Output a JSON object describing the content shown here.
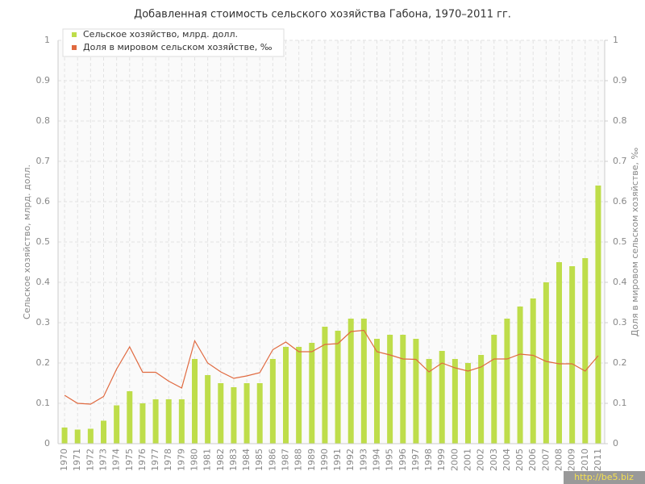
{
  "chart_data": {
    "type": "bar",
    "title": "Добавленная стоимость сельского хозяйства Габона, 1970–2011 гг.",
    "y_label": "Сельское хозяйство, млрд. долл.",
    "y2_label": "Доля в мировом сельском хозяйстве, ‰",
    "watermark": "http://be5.biz",
    "categories": [
      "1970",
      "1971",
      "1972",
      "1973",
      "1974",
      "1975",
      "1976",
      "1977",
      "1978",
      "1979",
      "1980",
      "1981",
      "1982",
      "1983",
      "1984",
      "1985",
      "1986",
      "1987",
      "1988",
      "1989",
      "1990",
      "1991",
      "1992",
      "1993",
      "1994",
      "1995",
      "1996",
      "1997",
      "1998",
      "1999",
      "2000",
      "2001",
      "2002",
      "2003",
      "2004",
      "2005",
      "2006",
      "2007",
      "2008",
      "2009",
      "2010",
      "2011"
    ],
    "series": [
      {
        "name": "Сельское хозяйство, млрд. долл.",
        "type": "bar",
        "color": "#bedd4a",
        "values": [
          0.04,
          0.035,
          0.037,
          0.057,
          0.095,
          0.13,
          0.1,
          0.11,
          0.11,
          0.11,
          0.21,
          0.17,
          0.15,
          0.14,
          0.15,
          0.15,
          0.21,
          0.24,
          0.24,
          0.25,
          0.29,
          0.28,
          0.31,
          0.31,
          0.26,
          0.27,
          0.27,
          0.26,
          0.21,
          0.23,
          0.21,
          0.2,
          0.22,
          0.27,
          0.31,
          0.34,
          0.36,
          0.4,
          0.45,
          0.44,
          0.46,
          0.64
        ]
      },
      {
        "name": "Доля в мировом сельском хозяйстве, ‰",
        "type": "line",
        "axis": "y2",
        "color": "#e0693f",
        "values": [
          0.12,
          0.1,
          0.098,
          0.117,
          0.185,
          0.24,
          0.177,
          0.177,
          0.155,
          0.138,
          0.255,
          0.2,
          0.178,
          0.162,
          0.168,
          0.176,
          0.233,
          0.252,
          0.228,
          0.228,
          0.246,
          0.248,
          0.278,
          0.281,
          0.228,
          0.22,
          0.21,
          0.209,
          0.178,
          0.2,
          0.188,
          0.18,
          0.19,
          0.21,
          0.21,
          0.222,
          0.219,
          0.204,
          0.198,
          0.198,
          0.18,
          0.218
        ]
      }
    ],
    "ylim": [
      0,
      1
    ],
    "yticks": [
      0,
      0.1,
      0.2,
      0.3,
      0.4,
      0.5,
      0.6,
      0.7,
      0.8,
      0.9,
      1
    ],
    "y2lim": [
      0,
      1
    ],
    "y2ticks": [
      0,
      0.1,
      0.2,
      0.3,
      0.4,
      0.5,
      0.6,
      0.7,
      0.8,
      0.9,
      1
    ],
    "grid": true
  }
}
